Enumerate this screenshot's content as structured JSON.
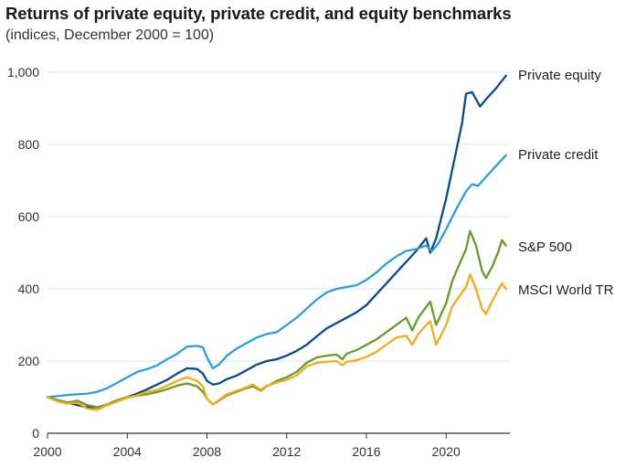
{
  "chart_data": {
    "type": "line",
    "title": "Returns of private equity, private credit, and equity benchmarks",
    "subtitle": "(indices, December 2000 = 100)",
    "xlabel": "",
    "ylabel": "",
    "xlim": [
      2000,
      2023.2
    ],
    "ylim": [
      0,
      1000
    ],
    "x_ticks": [
      "2000",
      "2004",
      "2008",
      "2012",
      "2016",
      "2020"
    ],
    "y_ticks": [
      "0",
      "200",
      "400",
      "600",
      "800",
      "1,000"
    ],
    "grid": true,
    "series": [
      {
        "name": "Private equity",
        "color": "#0b4a8b",
        "x": [
          2000,
          2000.5,
          2001,
          2001.5,
          2002,
          2002.5,
          2003,
          2003.5,
          2004,
          2004.5,
          2005,
          2005.5,
          2006,
          2006.5,
          2007,
          2007.5,
          2007.8,
          2008,
          2008.3,
          2008.6,
          2009,
          2009.5,
          2010,
          2010.5,
          2011,
          2011.5,
          2012,
          2012.5,
          2013,
          2013.5,
          2014,
          2014.5,
          2015,
          2015.5,
          2016,
          2016.5,
          2017,
          2017.5,
          2018,
          2018.5,
          2019,
          2019.2,
          2019.5,
          2020,
          2020.5,
          2020.8,
          2021,
          2021.3,
          2021.7,
          2022,
          2022.5,
          2023
        ],
        "values": [
          100,
          92,
          85,
          78,
          72,
          72,
          78,
          88,
          100,
          110,
          122,
          135,
          148,
          165,
          180,
          178,
          165,
          145,
          135,
          138,
          150,
          160,
          175,
          190,
          200,
          205,
          215,
          228,
          245,
          268,
          290,
          305,
          320,
          335,
          355,
          385,
          415,
          445,
          475,
          505,
          540,
          500,
          540,
          650,
          780,
          860,
          940,
          945,
          905,
          925,
          955,
          990
        ]
      },
      {
        "name": "Private credit",
        "color": "#2d9fd9",
        "x": [
          2000,
          2000.5,
          2001,
          2001.5,
          2002,
          2002.5,
          2003,
          2003.5,
          2004,
          2004.5,
          2005,
          2005.5,
          2006,
          2006.5,
          2007,
          2007.5,
          2007.8,
          2008,
          2008.3,
          2008.6,
          2009,
          2009.5,
          2010,
          2010.5,
          2011,
          2011.5,
          2012,
          2012.5,
          2013,
          2013.5,
          2014,
          2014.5,
          2015,
          2015.5,
          2016,
          2016.5,
          2017,
          2017.5,
          2018,
          2018.5,
          2019,
          2019.3,
          2019.6,
          2020,
          2020.5,
          2021,
          2021.3,
          2021.6,
          2022,
          2022.5,
          2023
        ],
        "values": [
          100,
          103,
          106,
          108,
          110,
          115,
          125,
          140,
          155,
          170,
          178,
          188,
          205,
          220,
          240,
          242,
          238,
          210,
          180,
          190,
          215,
          235,
          250,
          265,
          275,
          280,
          300,
          320,
          345,
          370,
          390,
          400,
          405,
          410,
          425,
          445,
          470,
          490,
          505,
          510,
          520,
          505,
          525,
          565,
          620,
          670,
          690,
          685,
          710,
          740,
          770
        ]
      },
      {
        "name": "S&P 500",
        "color": "#6b9a2b",
        "x": [
          2000,
          2000.5,
          2001,
          2001.5,
          2002,
          2002.5,
          2003,
          2003.5,
          2004,
          2004.5,
          2005,
          2005.5,
          2006,
          2006.5,
          2007,
          2007.5,
          2007.8,
          2008,
          2008.3,
          2008.6,
          2009,
          2009.5,
          2010,
          2010.3,
          2010.7,
          2011,
          2011.5,
          2012,
          2012.5,
          2013,
          2013.5,
          2014,
          2014.5,
          2014.8,
          2015,
          2015.5,
          2016,
          2016.5,
          2017,
          2017.5,
          2018,
          2018.3,
          2018.6,
          2019,
          2019.2,
          2019.5,
          2020,
          2020.3,
          2020.6,
          2021,
          2021.2,
          2021.5,
          2021.8,
          2022,
          2022.3,
          2022.6,
          2022.8,
          2023
        ],
        "values": [
          100,
          92,
          85,
          90,
          78,
          72,
          80,
          92,
          100,
          104,
          108,
          114,
          122,
          132,
          138,
          130,
          115,
          95,
          80,
          90,
          105,
          115,
          125,
          130,
          118,
          130,
          145,
          155,
          170,
          195,
          210,
          215,
          218,
          205,
          220,
          230,
          245,
          260,
          280,
          300,
          320,
          285,
          320,
          350,
          365,
          300,
          360,
          420,
          460,
          510,
          560,
          520,
          450,
          430,
          460,
          500,
          535,
          520
        ]
      },
      {
        "name": "MSCI World TR",
        "color": "#f2ad1b",
        "x": [
          2000,
          2000.5,
          2001,
          2001.5,
          2002,
          2002.5,
          2003,
          2003.5,
          2004,
          2004.5,
          2005,
          2005.5,
          2006,
          2006.5,
          2007,
          2007.5,
          2007.8,
          2008,
          2008.3,
          2008.6,
          2009,
          2009.5,
          2010,
          2010.3,
          2010.7,
          2011,
          2011.5,
          2012,
          2012.5,
          2013,
          2013.5,
          2014,
          2014.5,
          2014.8,
          2015,
          2015.5,
          2016,
          2016.5,
          2017,
          2017.5,
          2018,
          2018.3,
          2018.6,
          2019,
          2019.2,
          2019.5,
          2020,
          2020.3,
          2020.6,
          2021,
          2021.2,
          2021.5,
          2021.8,
          2022,
          2022.3,
          2022.6,
          2022.8,
          2023
        ],
        "values": [
          100,
          88,
          82,
          85,
          68,
          65,
          78,
          88,
          98,
          105,
          115,
          120,
          132,
          145,
          155,
          145,
          130,
          95,
          80,
          92,
          108,
          118,
          128,
          135,
          120,
          132,
          140,
          148,
          160,
          185,
          195,
          198,
          200,
          188,
          198,
          202,
          212,
          225,
          245,
          265,
          270,
          245,
          275,
          300,
          310,
          245,
          300,
          350,
          375,
          405,
          440,
          400,
          345,
          330,
          365,
          395,
          415,
          400
        ]
      }
    ]
  }
}
